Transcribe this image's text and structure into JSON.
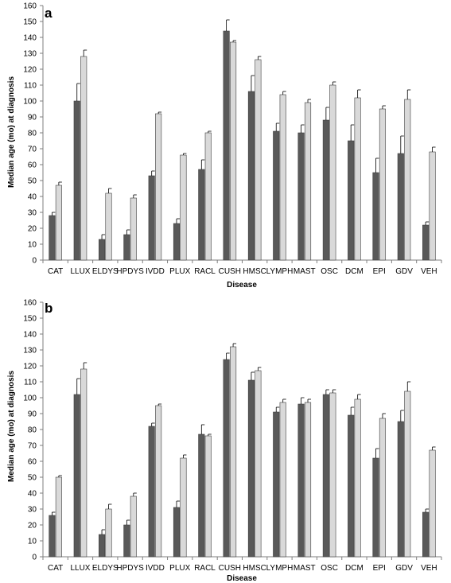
{
  "colors": {
    "series_dark": "#595959",
    "series_light": "#d9d9d9",
    "bar_outline": "#404040",
    "axis": "#7f7f7f"
  },
  "chart_data": [
    {
      "panel": "a",
      "type": "bar",
      "categories": [
        "CAT",
        "LLUX",
        "ELDYS",
        "HPDYS",
        "IVDD",
        "PLUX",
        "RACL",
        "CUSH",
        "HMSC",
        "LYMPH",
        "MAST",
        "OSC",
        "DCM",
        "EPI",
        "GDV",
        "VEH"
      ],
      "series": [
        {
          "values": [
            28,
            100,
            13,
            16,
            53,
            23,
            57,
            144,
            106,
            81,
            80,
            88,
            75,
            55,
            67,
            22
          ],
          "error_upper": [
            30,
            111,
            16,
            19,
            56,
            26,
            63,
            151,
            116,
            86,
            85,
            96,
            85,
            64,
            78,
            24
          ]
        },
        {
          "values": [
            47,
            128,
            42,
            39,
            92,
            66,
            80,
            137,
            126,
            104,
            99,
            110,
            102,
            95,
            101,
            68
          ],
          "error_upper": [
            49,
            132,
            45,
            41,
            93,
            67,
            81,
            138,
            128,
            106,
            101,
            112,
            107,
            97,
            107,
            71
          ]
        }
      ],
      "xlabel": "Disease",
      "ylabel": "Median age (mo) at diagnosis",
      "ylim": [
        0,
        160
      ],
      "yticks": [
        0,
        10,
        20,
        30,
        40,
        50,
        60,
        70,
        80,
        90,
        100,
        110,
        120,
        130,
        140,
        150,
        160
      ],
      "grid": false,
      "legend": "none"
    },
    {
      "panel": "b",
      "type": "bar",
      "categories": [
        "CAT",
        "LLUX",
        "ELDYS",
        "HPDYS",
        "IVDD",
        "PLUX",
        "RACL",
        "CUSH",
        "HMSC",
        "LYMPH",
        "MAST",
        "OSC",
        "DCM",
        "EPI",
        "GDV",
        "VEH"
      ],
      "series": [
        {
          "values": [
            26,
            102,
            14,
            20,
            82,
            31,
            77,
            124,
            111,
            91,
            96,
            102,
            89,
            62,
            85,
            28
          ],
          "error_upper": [
            28,
            112,
            17,
            23,
            84,
            35,
            83,
            128,
            116,
            94,
            100,
            105,
            94,
            68,
            92,
            30
          ]
        },
        {
          "values": [
            50,
            118,
            30,
            38,
            95,
            62,
            76,
            132,
            117,
            97,
            97,
            103,
            99,
            87,
            104,
            67
          ],
          "error_upper": [
            51,
            122,
            33,
            40,
            96,
            64,
            77,
            134,
            119,
            99,
            99,
            105,
            102,
            90,
            110,
            69
          ]
        }
      ],
      "xlabel": "Disease",
      "ylabel": "Median age (mo) at diagnosis",
      "ylim": [
        0,
        160
      ],
      "yticks": [
        0,
        10,
        20,
        30,
        40,
        50,
        60,
        70,
        80,
        90,
        100,
        110,
        120,
        130,
        140,
        150,
        160
      ],
      "grid": false,
      "legend": "none"
    }
  ]
}
